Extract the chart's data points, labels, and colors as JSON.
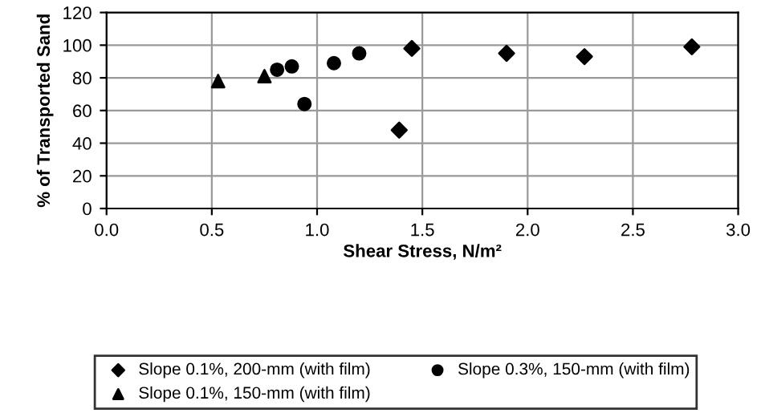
{
  "chart_data": {
    "type": "scatter",
    "xlabel": "Shear Stress, N/m²",
    "ylabel": "% of Transported Sand",
    "xlim": [
      0,
      3
    ],
    "xticks": [
      {
        "value": 0,
        "label": "0.0"
      },
      {
        "value": 0.5,
        "label": "0.5"
      },
      {
        "value": 1,
        "label": "1.0"
      },
      {
        "value": 1.5,
        "label": "1.5"
      },
      {
        "value": 2,
        "label": "2.0"
      },
      {
        "value": 2.5,
        "label": "2.5"
      },
      {
        "value": 3,
        "label": "3.0"
      }
    ],
    "ylim": [
      0,
      120
    ],
    "yticks": [
      0,
      20,
      40,
      60,
      80,
      100,
      120
    ],
    "grid": true,
    "legend": "bottom",
    "series": [
      {
        "name": "Slope 0.1%, 200-mm (with film)",
        "color": "#000000",
        "marker": "diamond",
        "x": [
          1.39,
          1.45,
          1.9,
          2.27,
          2.78
        ],
        "values": [
          48,
          98,
          95,
          93,
          99
        ]
      },
      {
        "name": "Slope 0.1%, 150-mm (with film)",
        "color": "#000000",
        "marker": "triangle",
        "x": [
          0.53,
          0.75
        ],
        "values": [
          78,
          81
        ]
      },
      {
        "name": "Slope 0.3%, 150-mm (with film)",
        "color": "#000000",
        "marker": "circle",
        "x": [
          0.81,
          0.88,
          0.94,
          1.08,
          1.2
        ],
        "values": [
          85,
          87,
          64,
          89,
          95
        ]
      }
    ]
  }
}
